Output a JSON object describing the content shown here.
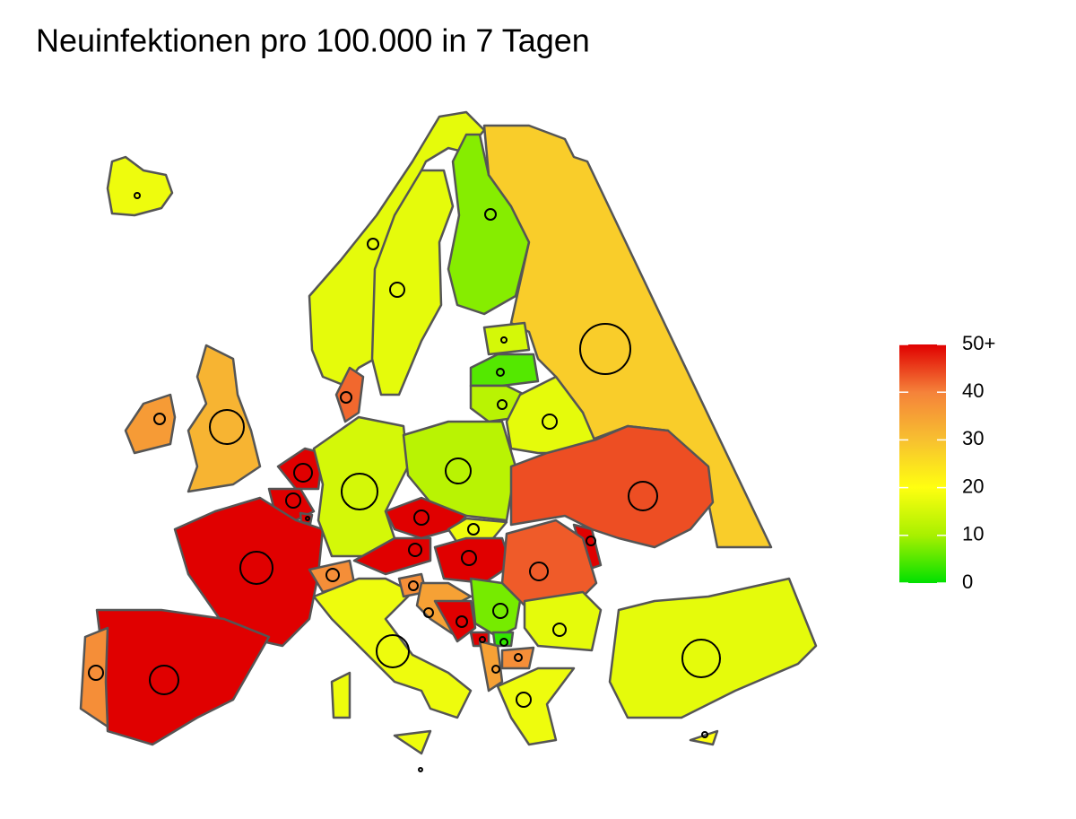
{
  "chart_data": {
    "type": "choropleth",
    "title": "Neuinfektionen pro 100.000 in 7 Tagen",
    "values": [
      18,
      17,
      17,
      8,
      28,
      15,
      5,
      12,
      17,
      32,
      36,
      42,
      50,
      50,
      50,
      50,
      50,
      38,
      15,
      12,
      50,
      50,
      38,
      18,
      50,
      44,
      50,
      43,
      18,
      18,
      18,
      38,
      35,
      50,
      7,
      50,
      3,
      38,
      35,
      18,
      17,
      17,
      20
    ],
    "colorscale": {
      "stops": [
        0,
        10,
        20,
        30,
        40,
        50
      ],
      "colors": [
        "#00e000",
        "#a8f000",
        "#ffff10",
        "#f7c030",
        "#f5823a",
        "#e00000"
      ]
    },
    "clim": [
      0,
      50
    ],
    "cticks": [
      0,
      10,
      20,
      30,
      40,
      {
        "value": 50,
        "label": "50+"
      }
    ]
  }
}
